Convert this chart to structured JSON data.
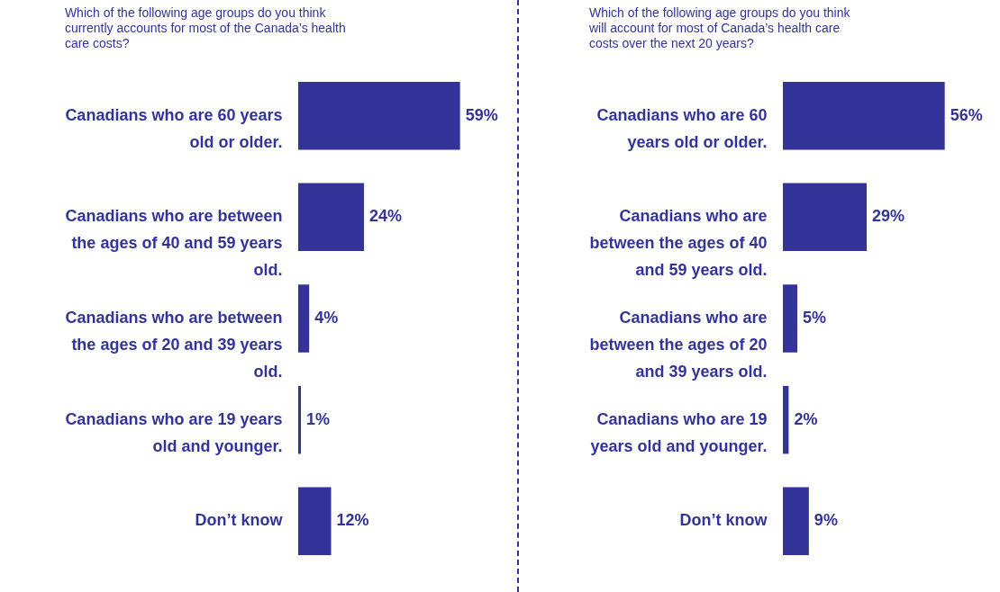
{
  "chart_data": [
    {
      "type": "bar",
      "orientation": "horizontal",
      "title": "Which of the following age groups do you think currently accounts for most of the Canada’s health care costs?",
      "categories": [
        "Canadians who are 60 years old or older.",
        "Canadians who are between the ages of 40 and 59 years old.",
        "Canadians who are between the ages of 20 and 39 years old.",
        "Canadians who are 19 years old and younger.",
        "Don’t know"
      ],
      "values": [
        59,
        24,
        4,
        1,
        12
      ],
      "value_labels": [
        "59%",
        "24%",
        "4%",
        "1%",
        "12%"
      ],
      "color": "#333399"
    },
    {
      "type": "bar",
      "orientation": "horizontal",
      "title": "Which of the following age groups do you think will account for most of Canada’s health care costs over the next 20 years?",
      "categories": [
        "Canadians who are 60 years old or older.",
        "Canadians who are between the ages of 40 and 59 years old.",
        "Canadians who are between the ages of 20 and 39 years old.",
        "Canadians who are 19 years old and younger.",
        "Don’t know"
      ],
      "values": [
        56,
        29,
        5,
        2,
        9
      ],
      "value_labels": [
        "56%",
        "29%",
        "5%",
        "2%",
        "9%"
      ],
      "color": "#333399"
    }
  ]
}
